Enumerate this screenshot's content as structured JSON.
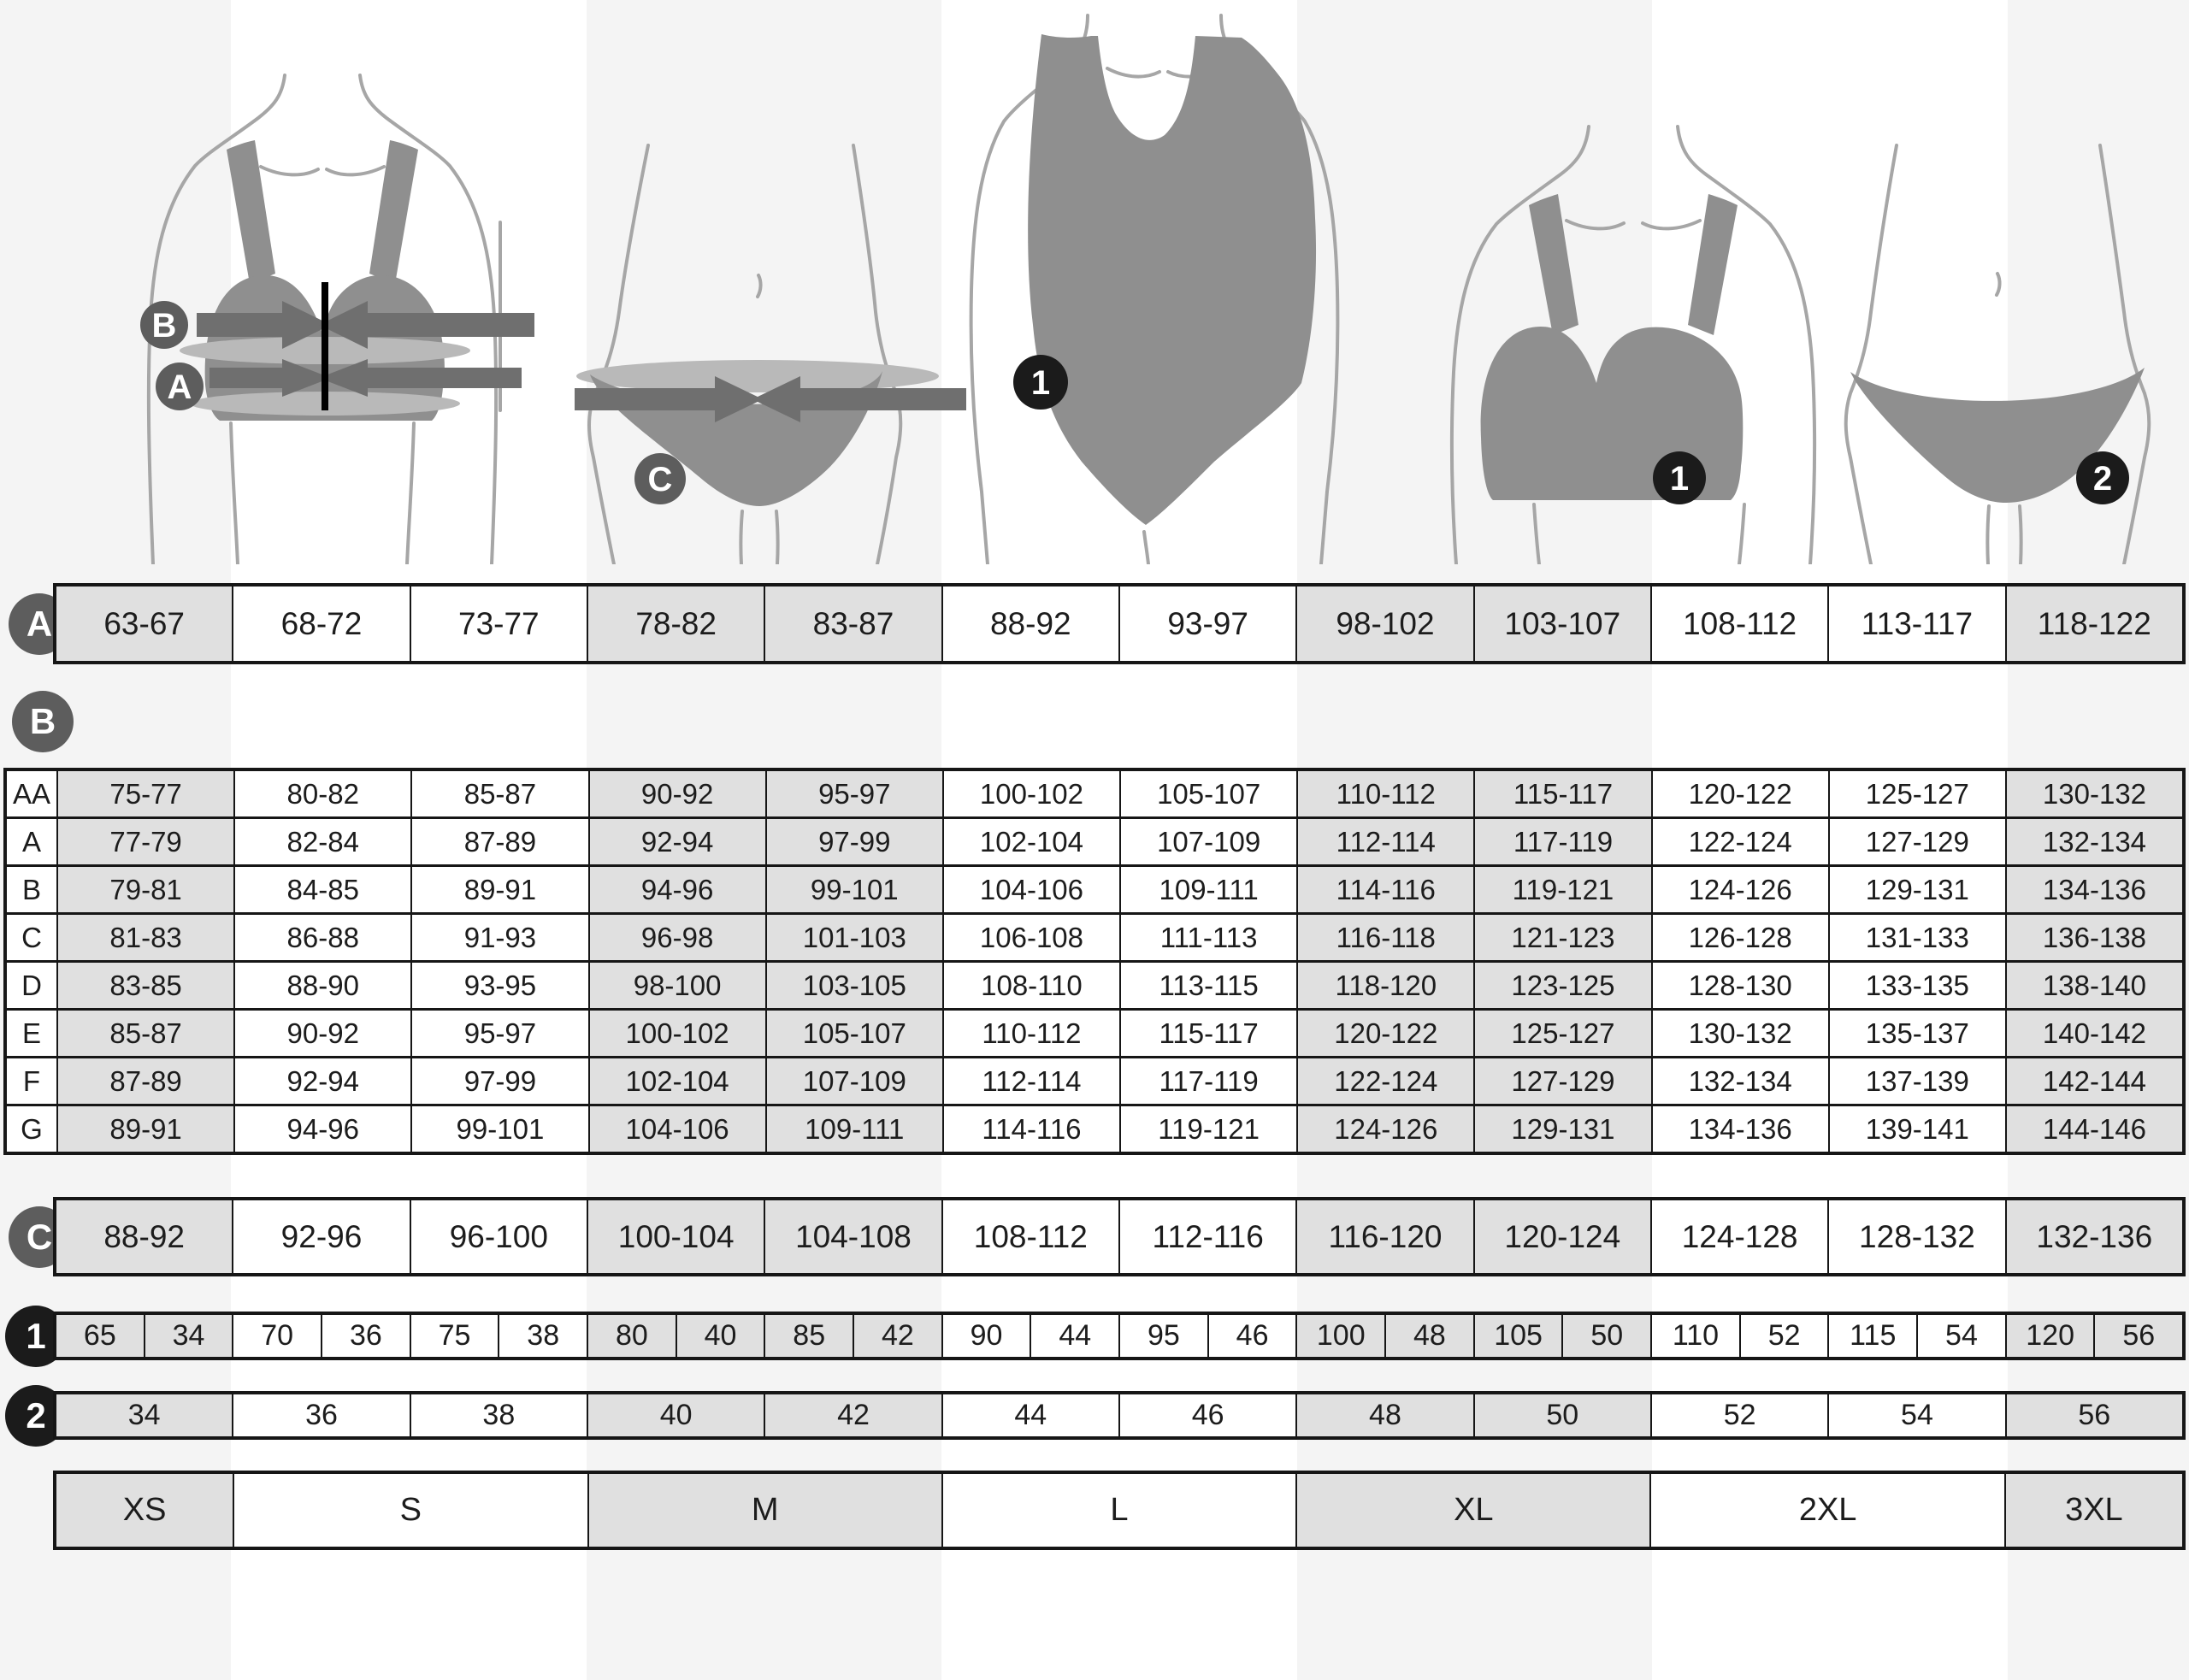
{
  "colors": {
    "ink": "#1c1c1c",
    "border": "#161616",
    "gray_cell": "#e0e0e0",
    "stripe": "#f4f4f4",
    "badge_gray": "#5d5d5d",
    "badge_black": "#1b1b1b",
    "garment": "#8f8f8f",
    "band": "#6f6f6f",
    "tape": "#b9b9b9",
    "outline": "#a6a6a6"
  },
  "figures": {
    "bra_measure": {
      "bust_badge": "B",
      "underbust_badge": "A"
    },
    "hips_measure": {
      "hips_badge": "C"
    },
    "swimsuit_fit": {
      "badge": "1"
    },
    "bra_fit": {
      "badge": "1"
    },
    "panties_fit": {
      "badge": "2"
    }
  },
  "row_a": {
    "badge": "A",
    "cells": [
      "63-67",
      "68-72",
      "73-77",
      "78-82",
      "83-87",
      "88-92",
      "93-97",
      "98-102",
      "103-107",
      "108-112",
      "113-117",
      "118-122"
    ]
  },
  "table_b": {
    "badge": "B",
    "rows": [
      {
        "cup": "AA",
        "cells": [
          "75-77",
          "80-82",
          "85-87",
          "90-92",
          "95-97",
          "100-102",
          "105-107",
          "110-112",
          "115-117",
          "120-122",
          "125-127",
          "130-132"
        ]
      },
      {
        "cup": "A",
        "cells": [
          "77-79",
          "82-84",
          "87-89",
          "92-94",
          "97-99",
          "102-104",
          "107-109",
          "112-114",
          "117-119",
          "122-124",
          "127-129",
          "132-134"
        ]
      },
      {
        "cup": "B",
        "cells": [
          "79-81",
          "84-85",
          "89-91",
          "94-96",
          "99-101",
          "104-106",
          "109-111",
          "114-116",
          "119-121",
          "124-126",
          "129-131",
          "134-136"
        ]
      },
      {
        "cup": "C",
        "cells": [
          "81-83",
          "86-88",
          "91-93",
          "96-98",
          "101-103",
          "106-108",
          "111-113",
          "116-118",
          "121-123",
          "126-128",
          "131-133",
          "136-138"
        ]
      },
      {
        "cup": "D",
        "cells": [
          "83-85",
          "88-90",
          "93-95",
          "98-100",
          "103-105",
          "108-110",
          "113-115",
          "118-120",
          "123-125",
          "128-130",
          "133-135",
          "138-140"
        ]
      },
      {
        "cup": "E",
        "cells": [
          "85-87",
          "90-92",
          "95-97",
          "100-102",
          "105-107",
          "110-112",
          "115-117",
          "120-122",
          "125-127",
          "130-132",
          "135-137",
          "140-142"
        ]
      },
      {
        "cup": "F",
        "cells": [
          "87-89",
          "92-94",
          "97-99",
          "102-104",
          "107-109",
          "112-114",
          "117-119",
          "122-124",
          "127-129",
          "132-134",
          "137-139",
          "142-144"
        ]
      },
      {
        "cup": "G",
        "cells": [
          "89-91",
          "94-96",
          "99-101",
          "104-106",
          "109-111",
          "114-116",
          "119-121",
          "124-126",
          "129-131",
          "134-136",
          "139-141",
          "144-146"
        ]
      }
    ]
  },
  "row_c": {
    "badge": "C",
    "cells": [
      "88-92",
      "92-96",
      "96-100",
      "100-104",
      "104-108",
      "108-112",
      "112-116",
      "116-120",
      "120-124",
      "124-128",
      "128-132",
      "132-136"
    ]
  },
  "row_1": {
    "badge": "1",
    "cells": [
      "65",
      "34",
      "70",
      "36",
      "75",
      "38",
      "80",
      "40",
      "85",
      "42",
      "90",
      "44",
      "95",
      "46",
      "100",
      "48",
      "105",
      "50",
      "110",
      "52",
      "115",
      "54",
      "120",
      "56"
    ]
  },
  "row_2": {
    "badge": "2",
    "cells": [
      "34",
      "36",
      "38",
      "40",
      "42",
      "44",
      "46",
      "48",
      "50",
      "52",
      "54",
      "56"
    ]
  },
  "row_sizes": {
    "cells": [
      {
        "label": "XS",
        "span": 1
      },
      {
        "label": "S",
        "span": 2
      },
      {
        "label": "M",
        "span": 2
      },
      {
        "label": "L",
        "span": 2
      },
      {
        "label": "XL",
        "span": 2
      },
      {
        "label": "2XL",
        "span": 2
      },
      {
        "label": "3XL",
        "span": 1
      }
    ]
  }
}
